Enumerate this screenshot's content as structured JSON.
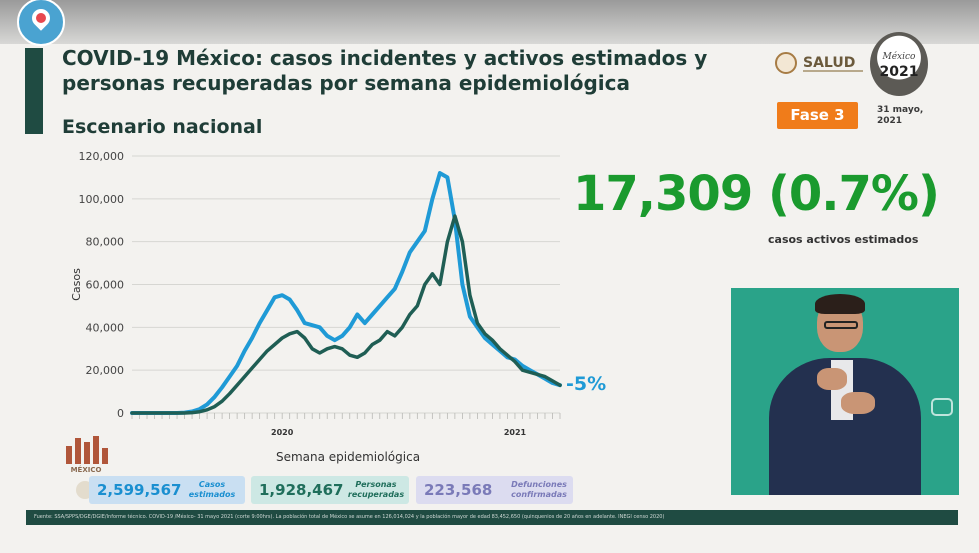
{
  "header": {
    "title": "COVID-19 México: casos incidentes y activos estimados y personas recuperadas por semana epidemiológica",
    "subtitle": "Escenario nacional",
    "salud_label": "SALUD",
    "emblem_year": "2021",
    "emblem_text": "México",
    "phase": "Fase 3",
    "date": "31 mayo, 2021"
  },
  "highlight": {
    "value": "17,309 (0.7%)",
    "label": "casos activos estimados"
  },
  "chart_data": {
    "type": "line",
    "xlabel": "Semana epidemiológica",
    "ylabel": "Casos",
    "ylim": [
      0,
      120000
    ],
    "yticks": [
      0,
      20000,
      40000,
      60000,
      80000,
      100000,
      120000
    ],
    "ytick_labels": [
      "0",
      "20,000",
      "40,000",
      "60,000",
      "80,000",
      "100,000",
      "120,000"
    ],
    "year_labels": [
      {
        "label": "2020",
        "week_index": 20
      },
      {
        "label": "2021",
        "week_index": 51
      }
    ],
    "grid": true,
    "annotation": "-5%",
    "series": [
      {
        "color": "#1f9ad6",
        "values": [
          0,
          0,
          0,
          0,
          0,
          0,
          0,
          200,
          700,
          1800,
          4000,
          7500,
          12000,
          17000,
          22000,
          29000,
          35000,
          42000,
          48000,
          54000,
          55000,
          53000,
          48000,
          42000,
          41000,
          40000,
          36000,
          34000,
          36000,
          40000,
          46000,
          42000,
          46000,
          50000,
          54000,
          58000,
          66000,
          75000,
          80000,
          85000,
          100000,
          112000,
          110000,
          90000,
          60000,
          45000,
          40000,
          35000,
          32000,
          29000,
          26000,
          25000,
          22000,
          20000,
          18000,
          16000,
          14000,
          13000
        ]
      },
      {
        "color": "#1f5e54",
        "values": [
          0,
          0,
          0,
          0,
          0,
          0,
          0,
          0,
          200,
          600,
          1500,
          3000,
          5500,
          9000,
          13000,
          17000,
          21000,
          25000,
          29000,
          32000,
          35000,
          37000,
          38000,
          35000,
          30000,
          28000,
          30000,
          31000,
          30000,
          27000,
          26000,
          28000,
          32000,
          34000,
          38000,
          36000,
          40000,
          46000,
          50000,
          60000,
          65000,
          60000,
          80000,
          92000,
          80000,
          55000,
          42000,
          37000,
          34000,
          30000,
          27000,
          24000,
          20000,
          19000,
          18000,
          17000,
          15000,
          13000
        ]
      }
    ]
  },
  "stats": {
    "casos_estimados": {
      "value": "2,599,567",
      "label": "Casos estimados"
    },
    "recuperadas": {
      "value": "1,928,467",
      "label": "Personas recuperadas"
    },
    "defunciones": {
      "value": "223,568",
      "label": "Defunciones confirmadas"
    }
  },
  "logo_caption": "MÉXICO",
  "footer_text": "Fuente: SSA/SPPS/DGE/DGIE/Informe técnico. COVID-19 /México- 31 mayo 2021 (corte 9:00hrs). La población total de México se asume en 126,014,024 y la población mayor de edad 83,452,650 (quinquenios de 20 años en adelante. INEGI censo 2020)"
}
